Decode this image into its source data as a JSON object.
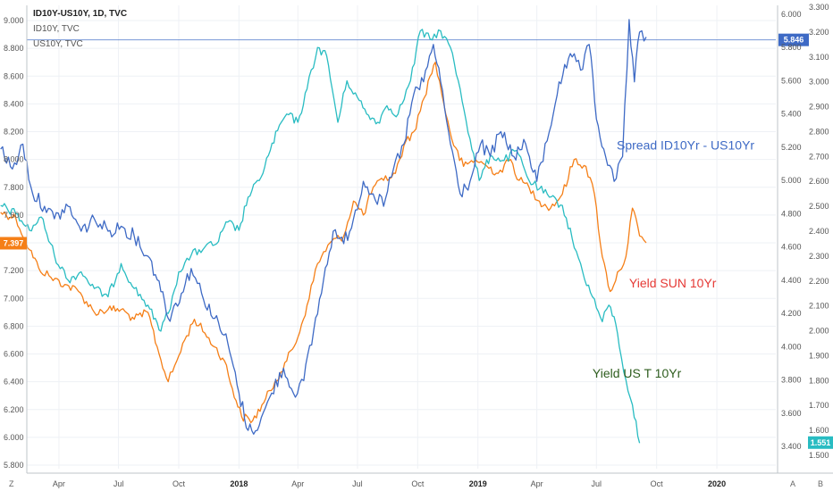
{
  "chart_data": {
    "type": "line",
    "legend": {
      "title": "ID10Y-US10Y, 1D, TVC",
      "entries": [
        "ID10Y, TVC",
        "US10Y, TVC"
      ],
      "placement": "top-left"
    },
    "x_labels": [
      "Apr",
      "Jul",
      "Oct",
      "2018",
      "Apr",
      "Jul",
      "Oct",
      "2019",
      "Apr",
      "Jul",
      "Oct",
      "2020"
    ],
    "x_bold": [
      "2018",
      "2019",
      "2020"
    ],
    "xlim": [
      "2017-01-01",
      "2020-03-31"
    ],
    "y_left": {
      "ticks": [
        "9.000",
        "8.800",
        "8.600",
        "8.400",
        "8.200",
        "8.000",
        "7.800",
        "7.600",
        "7.400",
        "7.200",
        "7.000",
        "6.800",
        "6.600",
        "6.400",
        "6.200",
        "6.000",
        "5.800"
      ],
      "range": [
        5.8,
        9.0
      ]
    },
    "y_right_outer": {
      "ticks": [
        "6.000",
        "5.800",
        "5.600",
        "5.400",
        "5.200",
        "5.000",
        "4.800",
        "4.600",
        "4.400",
        "4.200",
        "4.000",
        "3.800",
        "3.600",
        "3.400"
      ],
      "range": [
        3.4,
        6.0
      ]
    },
    "y_right_inner": {
      "ticks": [
        "3.300",
        "3.200",
        "3.100",
        "3.000",
        "2.900",
        "2.800",
        "2.700",
        "2.600",
        "2.500",
        "2.400",
        "2.300",
        "2.200",
        "2.100",
        "2.000",
        "1.900",
        "1.800",
        "1.700",
        "1.600",
        "1.500"
      ],
      "range": [
        1.5,
        3.3
      ]
    },
    "series": [
      {
        "name": "ID10Y, TVC",
        "color": "#f57f17",
        "axis": "left",
        "points": [
          [
            "2017-01-02",
            7.62
          ],
          [
            "2017-01-25",
            7.58
          ],
          [
            "2017-02-15",
            7.35
          ],
          [
            "2017-03-01",
            7.22
          ],
          [
            "2017-03-20",
            7.15
          ],
          [
            "2017-04-10",
            7.1
          ],
          [
            "2017-05-01",
            7.05
          ],
          [
            "2017-05-25",
            6.9
          ],
          [
            "2017-06-15",
            6.92
          ],
          [
            "2017-07-05",
            6.92
          ],
          [
            "2017-07-25",
            6.85
          ],
          [
            "2017-08-15",
            6.9
          ],
          [
            "2017-09-01",
            6.6
          ],
          [
            "2017-09-15",
            6.4
          ],
          [
            "2017-09-28",
            6.55
          ],
          [
            "2017-10-10",
            6.7
          ],
          [
            "2017-10-25",
            6.85
          ],
          [
            "2017-11-10",
            6.75
          ],
          [
            "2017-11-25",
            6.65
          ],
          [
            "2017-12-10",
            6.55
          ],
          [
            "2017-12-22",
            6.35
          ],
          [
            "2018-01-05",
            6.15
          ],
          [
            "2018-01-22",
            6.12
          ],
          [
            "2018-02-08",
            6.25
          ],
          [
            "2018-02-25",
            6.4
          ],
          [
            "2018-03-15",
            6.55
          ],
          [
            "2018-04-01",
            6.72
          ],
          [
            "2018-04-15",
            6.95
          ],
          [
            "2018-05-01",
            7.25
          ],
          [
            "2018-05-20",
            7.4
          ],
          [
            "2018-06-10",
            7.45
          ],
          [
            "2018-06-25",
            7.7
          ],
          [
            "2018-07-10",
            7.6
          ],
          [
            "2018-07-25",
            7.8
          ],
          [
            "2018-08-10",
            7.85
          ],
          [
            "2018-08-28",
            7.9
          ],
          [
            "2018-09-10",
            8.1
          ],
          [
            "2018-09-25",
            8.2
          ],
          [
            "2018-10-05",
            8.35
          ],
          [
            "2018-10-20",
            8.6
          ],
          [
            "2018-10-28",
            8.7
          ],
          [
            "2018-11-10",
            8.4
          ],
          [
            "2018-11-25",
            8.1
          ],
          [
            "2018-12-10",
            7.95
          ],
          [
            "2018-12-28",
            8.0
          ],
          [
            "2019-01-15",
            7.95
          ],
          [
            "2019-02-01",
            7.9
          ],
          [
            "2019-02-20",
            8.0
          ],
          [
            "2019-03-05",
            7.85
          ],
          [
            "2019-03-20",
            7.8
          ],
          [
            "2019-04-05",
            7.7
          ],
          [
            "2019-04-22",
            7.65
          ],
          [
            "2019-05-10",
            7.75
          ],
          [
            "2019-05-28",
            8.0
          ],
          [
            "2019-06-15",
            7.95
          ],
          [
            "2019-06-28",
            7.75
          ],
          [
            "2019-07-10",
            7.3
          ],
          [
            "2019-07-22",
            7.05
          ],
          [
            "2019-08-05",
            7.2
          ],
          [
            "2019-08-15",
            7.3
          ],
          [
            "2019-08-25",
            7.65
          ],
          [
            "2019-09-05",
            7.45
          ],
          [
            "2019-09-15",
            7.4
          ]
        ]
      },
      {
        "name": "US10Y, TVC",
        "color": "#29bcc2",
        "axis": "right_outer",
        "points": [
          [
            "2017-01-02",
            4.85
          ],
          [
            "2017-01-25",
            4.8
          ],
          [
            "2017-02-15",
            4.7
          ],
          [
            "2017-03-05",
            4.78
          ],
          [
            "2017-03-25",
            4.55
          ],
          [
            "2017-04-15",
            4.4
          ],
          [
            "2017-05-05",
            4.45
          ],
          [
            "2017-05-25",
            4.35
          ],
          [
            "2017-06-15",
            4.3
          ],
          [
            "2017-07-05",
            4.5
          ],
          [
            "2017-07-25",
            4.35
          ],
          [
            "2017-08-15",
            4.25
          ],
          [
            "2017-09-01",
            4.1
          ],
          [
            "2017-09-15",
            4.2
          ],
          [
            "2017-10-01",
            4.45
          ],
          [
            "2017-10-20",
            4.55
          ],
          [
            "2017-11-10",
            4.6
          ],
          [
            "2017-11-28",
            4.62
          ],
          [
            "2017-12-15",
            4.75
          ],
          [
            "2018-01-01",
            4.7
          ],
          [
            "2018-01-15",
            4.9
          ],
          [
            "2018-02-01",
            5.0
          ],
          [
            "2018-02-15",
            5.15
          ],
          [
            "2018-03-01",
            5.3
          ],
          [
            "2018-03-15",
            5.4
          ],
          [
            "2018-04-01",
            5.35
          ],
          [
            "2018-04-15",
            5.55
          ],
          [
            "2018-05-01",
            5.8
          ],
          [
            "2018-05-15",
            5.75
          ],
          [
            "2018-06-01",
            5.35
          ],
          [
            "2018-06-15",
            5.6
          ],
          [
            "2018-07-01",
            5.5
          ],
          [
            "2018-07-15",
            5.4
          ],
          [
            "2018-08-01",
            5.35
          ],
          [
            "2018-08-15",
            5.45
          ],
          [
            "2018-09-01",
            5.4
          ],
          [
            "2018-09-20",
            5.6
          ],
          [
            "2018-10-05",
            5.9
          ],
          [
            "2018-10-20",
            5.85
          ],
          [
            "2018-11-05",
            5.9
          ],
          [
            "2018-11-20",
            5.8
          ],
          [
            "2018-12-05",
            5.55
          ],
          [
            "2018-12-20",
            5.25
          ],
          [
            "2019-01-03",
            5.0
          ],
          [
            "2019-01-20",
            5.15
          ],
          [
            "2019-02-10",
            5.12
          ],
          [
            "2019-03-01",
            5.18
          ],
          [
            "2019-03-20",
            5.0
          ],
          [
            "2019-04-05",
            4.95
          ],
          [
            "2019-04-20",
            4.9
          ],
          [
            "2019-05-10",
            4.85
          ],
          [
            "2019-05-25",
            4.65
          ],
          [
            "2019-06-10",
            4.45
          ],
          [
            "2019-06-25",
            4.3
          ],
          [
            "2019-07-10",
            4.15
          ],
          [
            "2019-07-20",
            4.25
          ],
          [
            "2019-07-28",
            4.18
          ],
          [
            "2019-08-05",
            4.0
          ],
          [
            "2019-08-15",
            3.8
          ],
          [
            "2019-08-25",
            3.65
          ],
          [
            "2019-09-05",
            3.42
          ]
        ]
      },
      {
        "name": "ID10Y-US10Y, 1D, TVC",
        "color": "#3e6ac5",
        "axis": "right_inner",
        "points": [
          [
            "2017-01-02",
            2.73
          ],
          [
            "2017-01-20",
            2.65
          ],
          [
            "2017-02-05",
            2.75
          ],
          [
            "2017-02-20",
            2.55
          ],
          [
            "2017-03-10",
            2.5
          ],
          [
            "2017-03-25",
            2.45
          ],
          [
            "2017-04-15",
            2.5
          ],
          [
            "2017-05-05",
            2.4
          ],
          [
            "2017-05-25",
            2.45
          ],
          [
            "2017-06-15",
            2.4
          ],
          [
            "2017-07-05",
            2.42
          ],
          [
            "2017-07-25",
            2.38
          ],
          [
            "2017-08-15",
            2.3
          ],
          [
            "2017-09-01",
            2.2
          ],
          [
            "2017-09-15",
            2.05
          ],
          [
            "2017-10-05",
            2.15
          ],
          [
            "2017-10-20",
            2.25
          ],
          [
            "2017-11-05",
            2.15
          ],
          [
            "2017-11-25",
            2.05
          ],
          [
            "2017-12-15",
            1.95
          ],
          [
            "2018-01-01",
            1.75
          ],
          [
            "2018-01-15",
            1.6
          ],
          [
            "2018-02-01",
            1.62
          ],
          [
            "2018-02-20",
            1.75
          ],
          [
            "2018-03-10",
            1.85
          ],
          [
            "2018-03-25",
            1.75
          ],
          [
            "2018-04-10",
            1.8
          ],
          [
            "2018-04-25",
            2.0
          ],
          [
            "2018-05-10",
            2.2
          ],
          [
            "2018-05-25",
            2.4
          ],
          [
            "2018-06-10",
            2.35
          ],
          [
            "2018-06-25",
            2.45
          ],
          [
            "2018-07-10",
            2.6
          ],
          [
            "2018-07-25",
            2.55
          ],
          [
            "2018-08-10",
            2.5
          ],
          [
            "2018-08-25",
            2.65
          ],
          [
            "2018-09-10",
            2.75
          ],
          [
            "2018-09-25",
            2.95
          ],
          [
            "2018-10-10",
            3.0
          ],
          [
            "2018-10-25",
            3.15
          ],
          [
            "2018-11-05",
            3.0
          ],
          [
            "2018-11-20",
            2.75
          ],
          [
            "2018-12-05",
            2.55
          ],
          [
            "2018-12-20",
            2.6
          ],
          [
            "2019-01-05",
            2.75
          ],
          [
            "2019-01-20",
            2.7
          ],
          [
            "2019-02-05",
            2.8
          ],
          [
            "2019-02-25",
            2.7
          ],
          [
            "2019-03-15",
            2.75
          ],
          [
            "2019-04-01",
            2.6
          ],
          [
            "2019-04-20",
            2.8
          ],
          [
            "2019-05-05",
            3.0
          ],
          [
            "2019-05-25",
            3.1
          ],
          [
            "2019-06-10",
            3.05
          ],
          [
            "2019-06-20",
            3.15
          ],
          [
            "2019-07-01",
            2.85
          ],
          [
            "2019-07-15",
            2.7
          ],
          [
            "2019-07-28",
            2.6
          ],
          [
            "2019-08-10",
            2.7
          ],
          [
            "2019-08-20",
            3.25
          ],
          [
            "2019-08-28",
            3.0
          ],
          [
            "2019-09-05",
            3.2
          ],
          [
            "2019-09-15",
            3.18
          ]
        ]
      }
    ],
    "price_lines": [
      {
        "value": 5.846,
        "axis": "right_outer",
        "label": "5.846",
        "color": "#3e6ac5"
      }
    ],
    "badges": [
      {
        "value": 7.397,
        "axis": "left",
        "label": "7.397",
        "color": "#f57f17"
      },
      {
        "value": 1.551,
        "axis": "right_inner",
        "label": "1.551",
        "color": "#29bcc2"
      }
    ],
    "annotations": [
      {
        "text": "Spread ID10Yr - US10Yr",
        "color": "#3e6ac5",
        "date": "2019-08-01",
        "value": 8.07
      },
      {
        "text": "Yield SUN 10Yr",
        "color": "#e53935",
        "date": "2019-08-20",
        "value": 7.08
      },
      {
        "text": "Yield US T 10Yr",
        "color": "#2e5d1e",
        "date": "2019-06-25",
        "value": 6.43
      }
    ],
    "corner_labels": {
      "bottom_left": "Z",
      "bottom_right_a": "A",
      "bottom_right_b": "B"
    },
    "grid": true
  }
}
